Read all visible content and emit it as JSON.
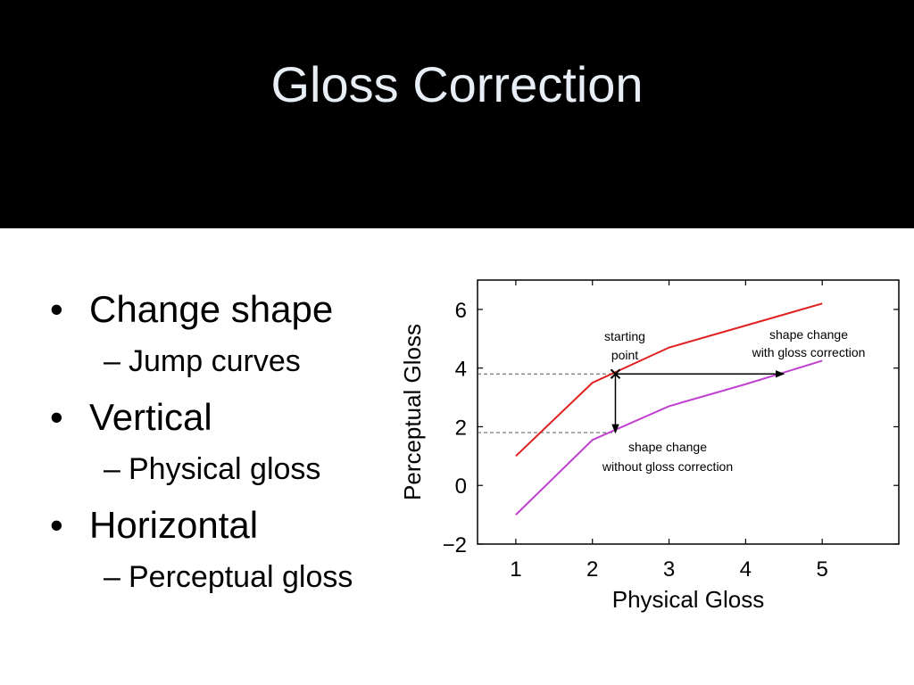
{
  "slide": {
    "title": "Gloss Correction",
    "bullets": [
      {
        "text": "Change shape",
        "sub": "Jump curves"
      },
      {
        "text": "Vertical",
        "sub": "Physical gloss"
      },
      {
        "text": "Horizontal",
        "sub": "Perceptual gloss"
      }
    ],
    "bullet_glyph": "•",
    "dash_glyph": "–"
  },
  "chart_data": {
    "type": "line",
    "xlabel": "Physical Gloss",
    "ylabel": "Perceptual Gloss",
    "xlim": [
      0.5,
      6.0
    ],
    "ylim": [
      -2,
      7
    ],
    "xticks": [
      1,
      2,
      3,
      4,
      5
    ],
    "yticks": [
      -2,
      0,
      2,
      4,
      6
    ],
    "ytick_labels": [
      "−2",
      "0",
      "2",
      "4",
      "6"
    ],
    "grid": false,
    "x": [
      1,
      2,
      3,
      4,
      5
    ],
    "series": [
      {
        "color": "#e02020",
        "values": [
          1.0,
          3.5,
          4.7,
          5.45,
          6.2
        ]
      },
      {
        "color": "#c040d0",
        "values": [
          -1.0,
          1.55,
          2.7,
          3.45,
          4.25
        ]
      }
    ],
    "reference_lines": [
      3.8,
      1.8
    ],
    "starting_point": {
      "x": 2.3,
      "y": 3.8
    },
    "arrows": [
      {
        "from": [
          2.3,
          3.8
        ],
        "to": [
          4.5,
          3.8
        ]
      },
      {
        "from": [
          2.3,
          3.8
        ],
        "to": [
          2.3,
          1.8
        ]
      }
    ],
    "annotations": {
      "start_1": "starting",
      "start_2": "point",
      "with_1": "shape change",
      "with_2": "with gloss correction",
      "without_1": "shape change",
      "without_2": "without gloss correction"
    }
  }
}
